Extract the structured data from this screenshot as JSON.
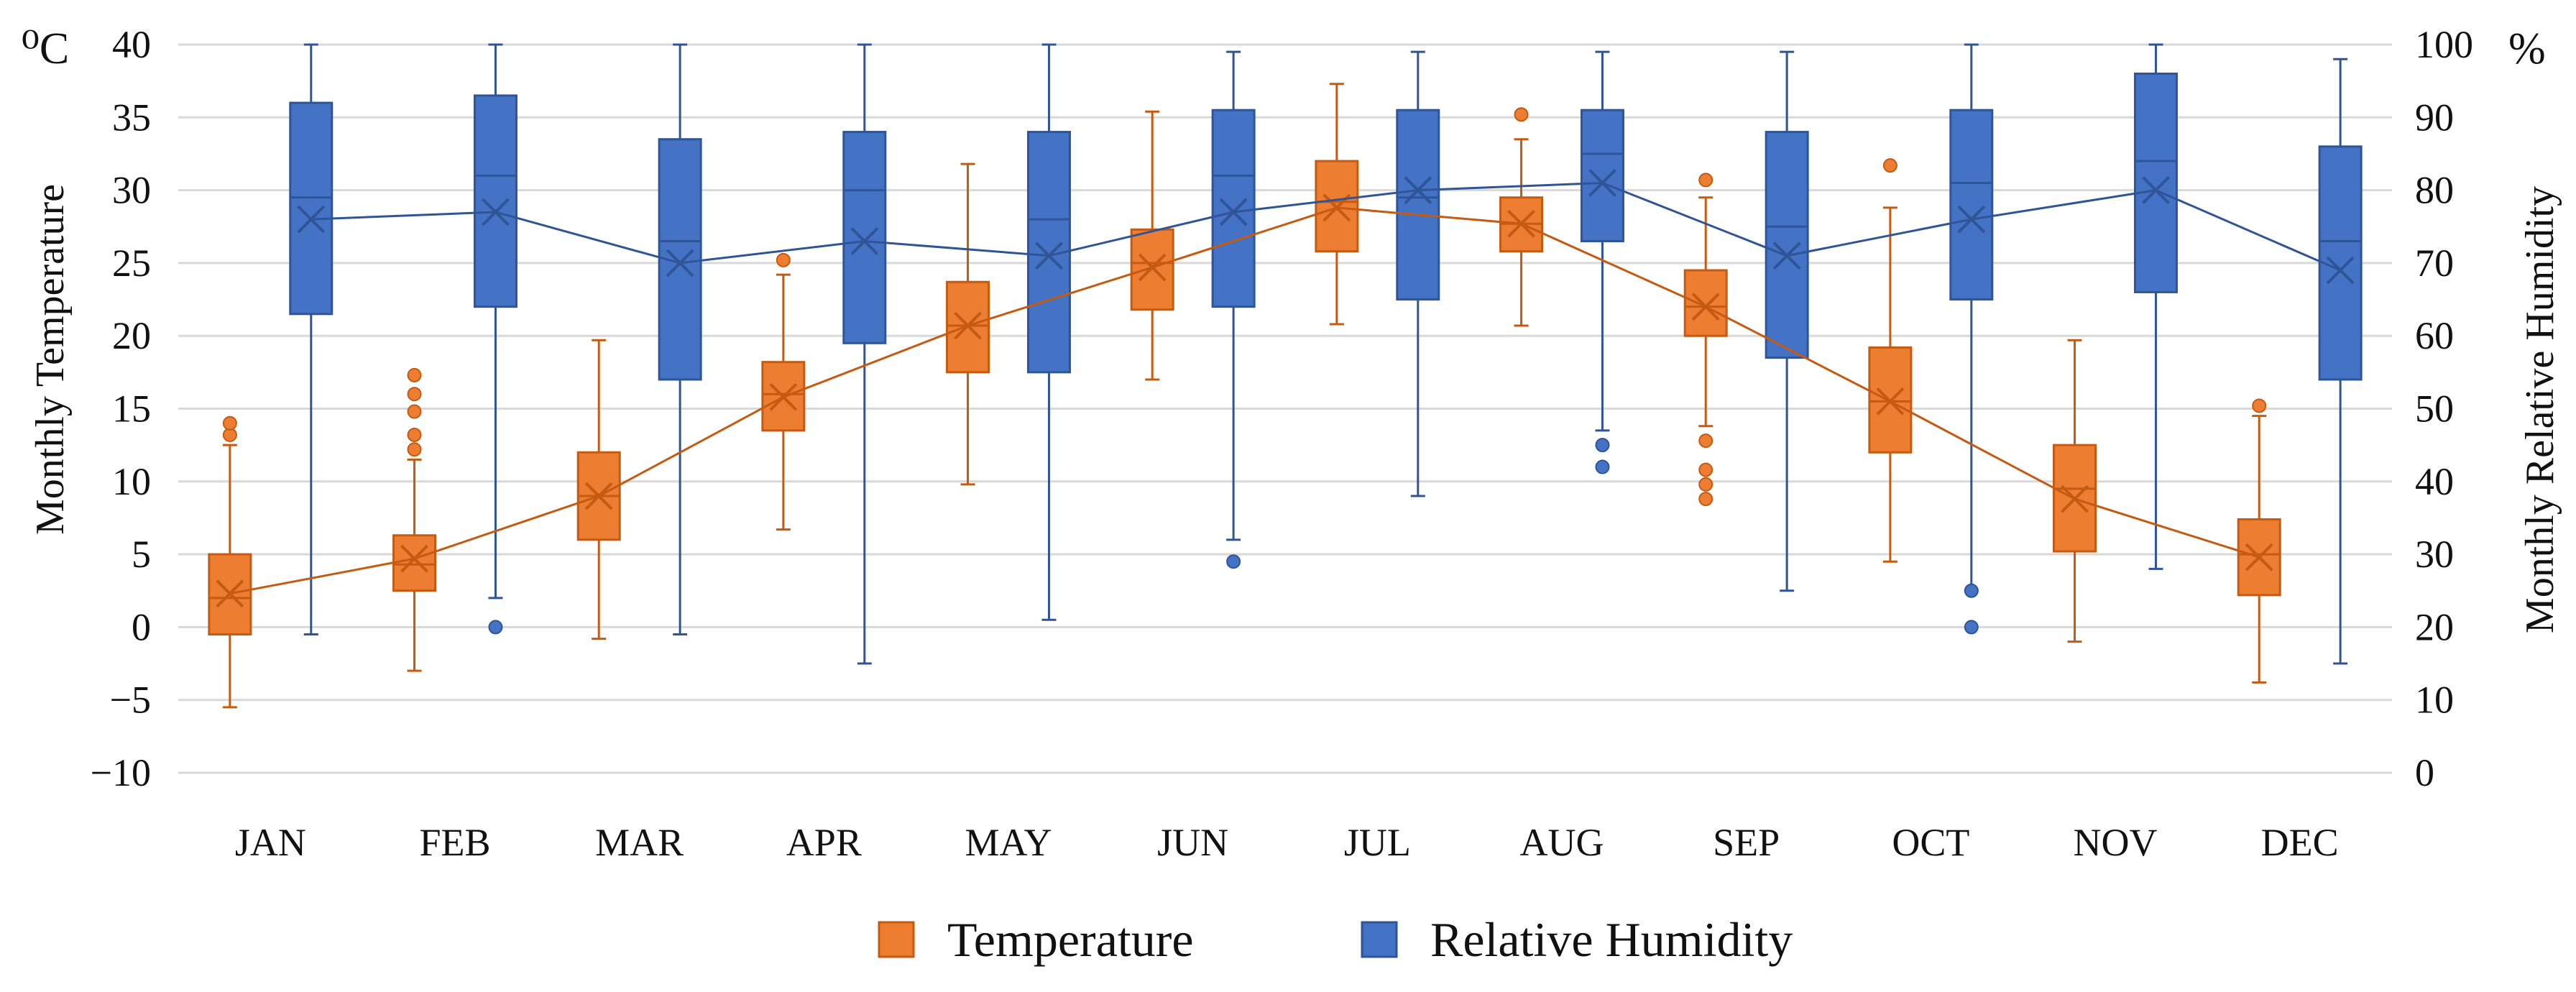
{
  "chart_data": {
    "type": "boxplot",
    "title": "",
    "categories": [
      "JAN",
      "FEB",
      "MAR",
      "APR",
      "MAY",
      "JUN",
      "JUL",
      "AUG",
      "SEP",
      "OCT",
      "NOV",
      "DEC"
    ],
    "y_left": {
      "label": "Monthly Temperature",
      "unit": "⁰C",
      "range": [
        -10,
        40
      ],
      "ticks": [
        -10,
        -5,
        0,
        5,
        10,
        15,
        20,
        25,
        30,
        35,
        40
      ]
    },
    "y_right": {
      "label": "Monthly Relative Humidity",
      "unit": "%",
      "range": [
        0,
        100
      ],
      "ticks": [
        0,
        10,
        20,
        30,
        40,
        50,
        60,
        70,
        80,
        90,
        100
      ]
    },
    "grid": true,
    "legend_position": "bottom-center",
    "colors": {
      "temperature": "#ED7D31",
      "temperature_edge": "#C55A11",
      "humidity": "#4472C4",
      "humidity_edge": "#2F5597",
      "grid": "#D9D9D9"
    },
    "series": [
      {
        "name": "Temperature",
        "axis": "left",
        "boxes": [
          {
            "min": -5.5,
            "q1": -0.5,
            "median": 2.0,
            "q3": 5.0,
            "max": 12.5,
            "mean": 2.3,
            "outliers": [
              13.2,
              14.0
            ]
          },
          {
            "min": -3.0,
            "q1": 2.5,
            "median": 4.3,
            "q3": 6.3,
            "max": 11.5,
            "mean": 4.7,
            "outliers": [
              12.2,
              13.2,
              14.8,
              16.0,
              17.3
            ]
          },
          {
            "min": -0.8,
            "q1": 6.0,
            "median": 9.0,
            "q3": 12.0,
            "max": 19.7,
            "mean": 9.0,
            "outliers": []
          },
          {
            "min": 6.7,
            "q1": 13.5,
            "median": 16.0,
            "q3": 18.2,
            "max": 24.2,
            "mean": 15.8,
            "outliers": [
              25.2
            ]
          },
          {
            "min": 9.8,
            "q1": 17.5,
            "median": 20.7,
            "q3": 23.7,
            "max": 31.8,
            "mean": 20.7,
            "outliers": []
          },
          {
            "min": 17.0,
            "q1": 21.8,
            "median": 25.0,
            "q3": 27.3,
            "max": 35.4,
            "mean": 24.7,
            "outliers": []
          },
          {
            "min": 20.8,
            "q1": 25.8,
            "median": 29.2,
            "q3": 32.0,
            "max": 37.3,
            "mean": 28.8,
            "outliers": []
          },
          {
            "min": 20.7,
            "q1": 25.8,
            "median": 27.7,
            "q3": 29.5,
            "max": 33.5,
            "mean": 27.7,
            "outliers": [
              35.2
            ]
          },
          {
            "min": 13.8,
            "q1": 20.0,
            "median": 22.0,
            "q3": 24.5,
            "max": 29.5,
            "mean": 22.0,
            "outliers": [
              8.8,
              9.8,
              10.8,
              12.8,
              30.7
            ]
          },
          {
            "min": 4.5,
            "q1": 12.0,
            "median": 15.5,
            "q3": 19.2,
            "max": 28.8,
            "mean": 15.5,
            "outliers": [
              31.7
            ]
          },
          {
            "min": -1.0,
            "q1": 5.2,
            "median": 9.5,
            "q3": 12.5,
            "max": 19.7,
            "mean": 8.8,
            "outliers": []
          },
          {
            "min": -3.8,
            "q1": 2.2,
            "median": 5.0,
            "q3": 7.4,
            "max": 14.5,
            "mean": 4.8,
            "outliers": [
              15.2
            ]
          }
        ]
      },
      {
        "name": "Relative Humidity",
        "axis": "right",
        "boxes": [
          {
            "min": 19,
            "q1": 63,
            "median": 79,
            "q3": 92,
            "max": 100,
            "mean": 76,
            "outliers": []
          },
          {
            "min": 24,
            "q1": 64,
            "median": 82,
            "q3": 93,
            "max": 100,
            "mean": 77,
            "outliers": [
              20
            ]
          },
          {
            "min": 19,
            "q1": 54,
            "median": 73,
            "q3": 87,
            "max": 100,
            "mean": 70,
            "outliers": []
          },
          {
            "min": 15,
            "q1": 59,
            "median": 80,
            "q3": 88,
            "max": 100,
            "mean": 73,
            "outliers": []
          },
          {
            "min": 21,
            "q1": 55,
            "median": 76,
            "q3": 88,
            "max": 100,
            "mean": 71,
            "outliers": []
          },
          {
            "min": 32,
            "q1": 64,
            "median": 82,
            "q3": 91,
            "max": 99,
            "mean": 77,
            "outliers": [
              29
            ]
          },
          {
            "min": 38,
            "q1": 65,
            "median": 79,
            "q3": 91,
            "max": 99,
            "mean": 80,
            "outliers": []
          },
          {
            "min": 47,
            "q1": 73,
            "median": 85,
            "q3": 91,
            "max": 99,
            "mean": 81,
            "outliers": [
              42,
              45
            ]
          },
          {
            "min": 25,
            "q1": 57,
            "median": 75,
            "q3": 88,
            "max": 99,
            "mean": 71,
            "outliers": []
          },
          {
            "min": 25,
            "q1": 65,
            "median": 81,
            "q3": 91,
            "max": 100,
            "mean": 76,
            "outliers": [
              20,
              25
            ]
          },
          {
            "min": 28,
            "q1": 66,
            "median": 84,
            "q3": 96,
            "max": 100,
            "mean": 80,
            "outliers": []
          },
          {
            "min": 15,
            "q1": 54,
            "median": 73,
            "q3": 86,
            "max": 98,
            "mean": 69,
            "outliers": []
          }
        ]
      }
    ],
    "legend": [
      {
        "label": "Temperature",
        "color": "#ED7D31"
      },
      {
        "label": "Relative Humidity",
        "color": "#4472C4"
      }
    ]
  }
}
